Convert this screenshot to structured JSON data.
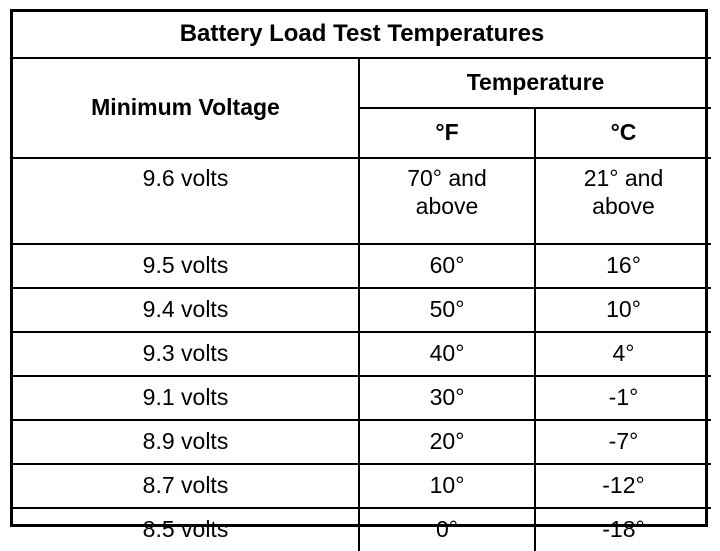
{
  "table": {
    "title": "Battery Load Test Temperatures",
    "header": {
      "voltage": "Minimum Voltage",
      "temperature": "Temperature",
      "unit_f": "°F",
      "unit_c": "°C"
    },
    "rows": [
      {
        "voltage": "9.6 volts",
        "f_line1": "70° and",
        "f_line2": "above",
        "c_line1": "21° and",
        "c_line2": "above"
      },
      {
        "voltage": "9.5 volts",
        "f": "60°",
        "c": "16°"
      },
      {
        "voltage": "9.4 volts",
        "f": "50°",
        "c": "10°"
      },
      {
        "voltage": "9.3 volts",
        "f": "40°",
        "c": "4°"
      },
      {
        "voltage": "9.1 volts",
        "f": "30°",
        "c": "-1°"
      },
      {
        "voltage": "8.9 volts",
        "f": "20°",
        "c": "-7°"
      },
      {
        "voltage": "8.7 volts",
        "f": "10°",
        "c": "-12°"
      },
      {
        "voltage": "8.5 volts",
        "f": "0°",
        "c": "-18°"
      }
    ]
  }
}
